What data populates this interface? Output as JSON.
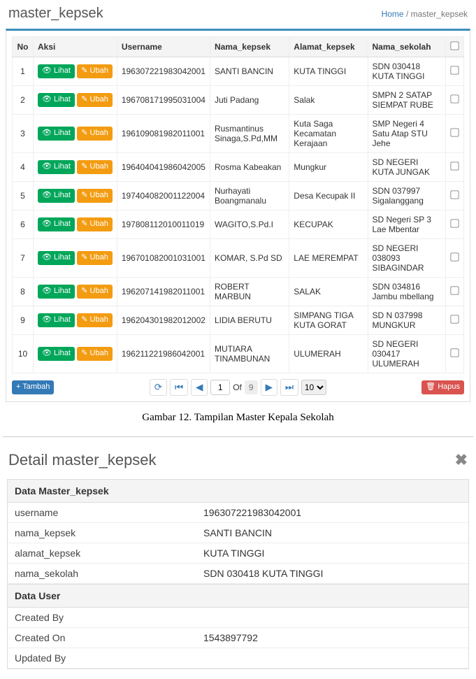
{
  "header": {
    "title": "master_kepsek",
    "breadcrumb_home": "Home",
    "breadcrumb_current": "master_kepsek"
  },
  "table": {
    "columns": {
      "no": "No",
      "aksi": "Aksi",
      "username": "Username",
      "nama_kepsek": "Nama_kepsek",
      "alamat_kepsek": "Alamat_kepsek",
      "nama_sekolah": "Nama_sekolah"
    },
    "lihat_label": "Lihat",
    "ubah_label": "Ubah",
    "rows": [
      {
        "no": "1",
        "username": "196307221983042001",
        "nama_kepsek": "SANTI BANCIN",
        "alamat_kepsek": "KUTA TINGGI",
        "nama_sekolah": "SDN 030418 KUTA TINGGI"
      },
      {
        "no": "2",
        "username": "196708171995031004",
        "nama_kepsek": "Juti Padang",
        "alamat_kepsek": "Salak",
        "nama_sekolah": "SMPN 2 SATAP SIEMPAT RUBE"
      },
      {
        "no": "3",
        "username": "196109081982011001",
        "nama_kepsek": "Rusmantinus Sinaga,S.Pd,MM",
        "alamat_kepsek": "Kuta Saga Kecamatan Kerajaan",
        "nama_sekolah": "SMP Negeri 4 Satu Atap STU Jehe"
      },
      {
        "no": "4",
        "username": "196404041986042005",
        "nama_kepsek": "Rosma Kabeakan",
        "alamat_kepsek": "Mungkur",
        "nama_sekolah": "SD NEGERI KUTA JUNGAK"
      },
      {
        "no": "5",
        "username": "197404082001122004",
        "nama_kepsek": "Nurhayati Boangmanalu",
        "alamat_kepsek": "Desa Kecupak II",
        "nama_sekolah": "SDN 037997 Sigalanggang"
      },
      {
        "no": "6",
        "username": "197808112010011019",
        "nama_kepsek": "WAGITO,S.Pd.I",
        "alamat_kepsek": "KECUPAK",
        "nama_sekolah": "SD Negeri SP 3 Lae Mbentar"
      },
      {
        "no": "7",
        "username": "196701082001031001",
        "nama_kepsek": "KOMAR, S.Pd SD",
        "alamat_kepsek": "LAE MEREMPAT",
        "nama_sekolah": "SD NEGERI 038093 SIBAGINDAR"
      },
      {
        "no": "8",
        "username": "196207141982011001",
        "nama_kepsek": "ROBERT MARBUN",
        "alamat_kepsek": "SALAK",
        "nama_sekolah": "SDN 034816 Jambu mbellang"
      },
      {
        "no": "9",
        "username": "196204301982012002",
        "nama_kepsek": "LIDIA BERUTU",
        "alamat_kepsek": "SIMPANG TIGA KUTA GORAT",
        "nama_sekolah": "SD N 037998 MUNGKUR"
      },
      {
        "no": "10",
        "username": "196211221986042001",
        "nama_kepsek": "MUTIARA TINAMBUNAN",
        "alamat_kepsek": "ULUMERAH",
        "nama_sekolah": "SD NEGERI 030417 ULUMERAH"
      }
    ]
  },
  "toolbar": {
    "tambah": "Tambah",
    "hapus": "Hapus",
    "page_current": "1",
    "page_of_label": "Of",
    "page_total": "9",
    "page_size": "10"
  },
  "caption": "Gambar 12. Tampilan Master Kepala Sekolah",
  "detail": {
    "title": "Detail master_kepsek",
    "section_master": "Data Master_kepsek",
    "section_user": "Data User",
    "fields": {
      "username_k": "username",
      "username_v": "196307221983042001",
      "nama_kepsek_k": "nama_kepsek",
      "nama_kepsek_v": "SANTI BANCIN",
      "alamat_kepsek_k": "alamat_kepsek",
      "alamat_kepsek_v": "KUTA TINGGI",
      "nama_sekolah_k": "nama_sekolah",
      "nama_sekolah_v": "SDN 030418 KUTA TINGGI",
      "created_by_k": "Created By",
      "created_by_v": "",
      "created_on_k": "Created On",
      "created_on_v": "1543897792",
      "updated_by_k": "Updated By",
      "updated_by_v": ""
    }
  }
}
